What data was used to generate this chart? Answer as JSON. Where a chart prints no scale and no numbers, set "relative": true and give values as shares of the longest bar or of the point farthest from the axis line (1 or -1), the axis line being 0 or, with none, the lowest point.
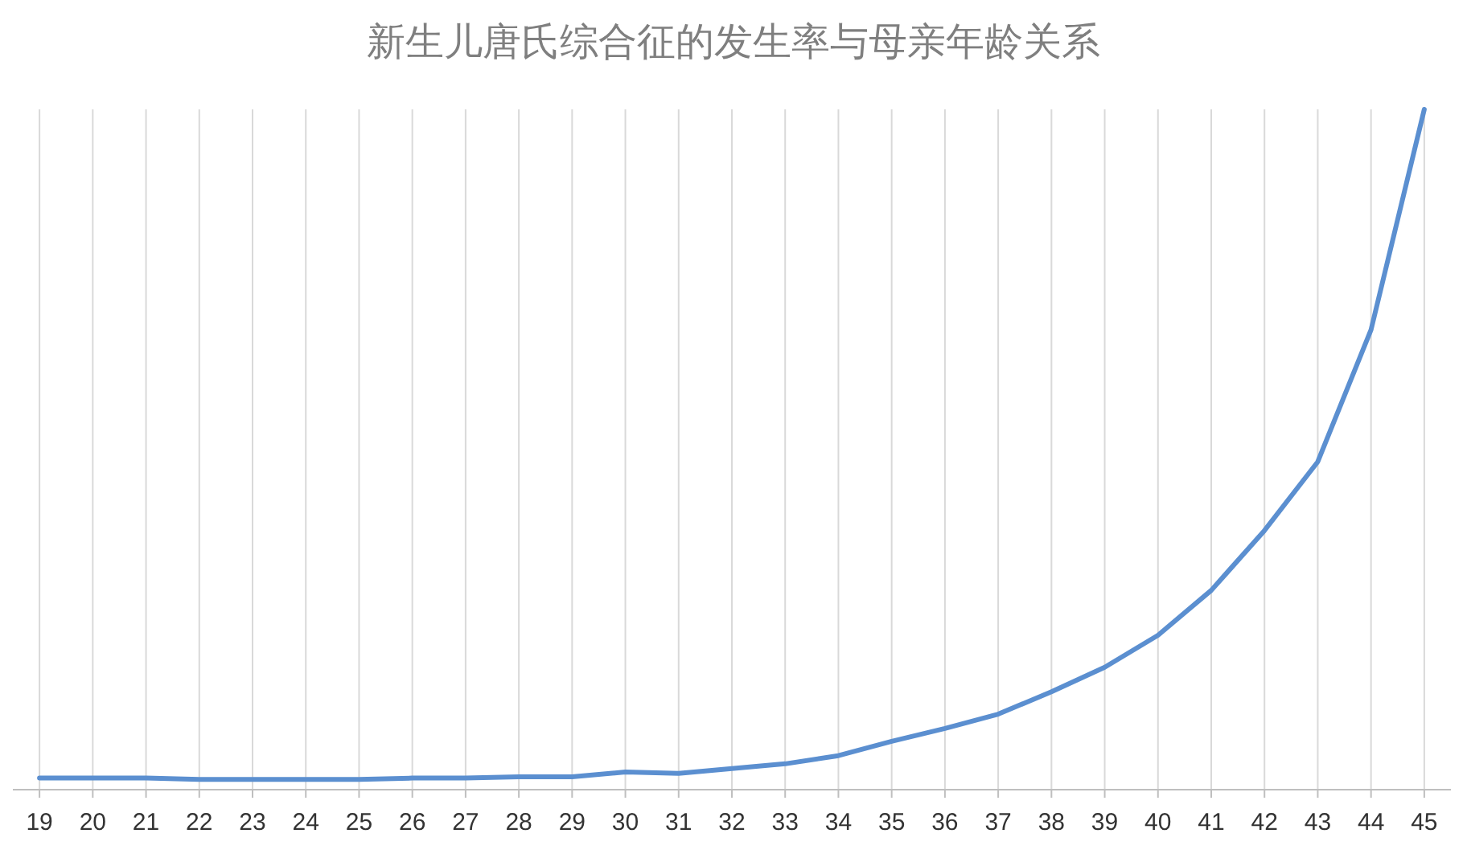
{
  "chart_data": {
    "type": "line",
    "title": "新生儿唐氏综合征的发生率与母亲年龄关系",
    "relative": true,
    "grid": "x",
    "marker": "none",
    "line_style": "solid",
    "categories": [
      "19",
      "20",
      "21",
      "22",
      "23",
      "24",
      "25",
      "26",
      "27",
      "28",
      "29",
      "30",
      "31",
      "32",
      "33",
      "34",
      "35",
      "36",
      "37",
      "38",
      "39",
      "40",
      "41",
      "42",
      "43",
      "44",
      "45"
    ],
    "series": [
      {
        "color": "#5b8fd0",
        "values": [
          0.017,
          0.017,
          0.017,
          0.015,
          0.015,
          0.015,
          0.015,
          0.017,
          0.017,
          0.019,
          0.019,
          0.026,
          0.024,
          0.031,
          0.038,
          0.05,
          0.071,
          0.09,
          0.111,
          0.144,
          0.18,
          0.227,
          0.293,
          0.381,
          0.482,
          0.676,
          1
        ]
      }
    ]
  }
}
